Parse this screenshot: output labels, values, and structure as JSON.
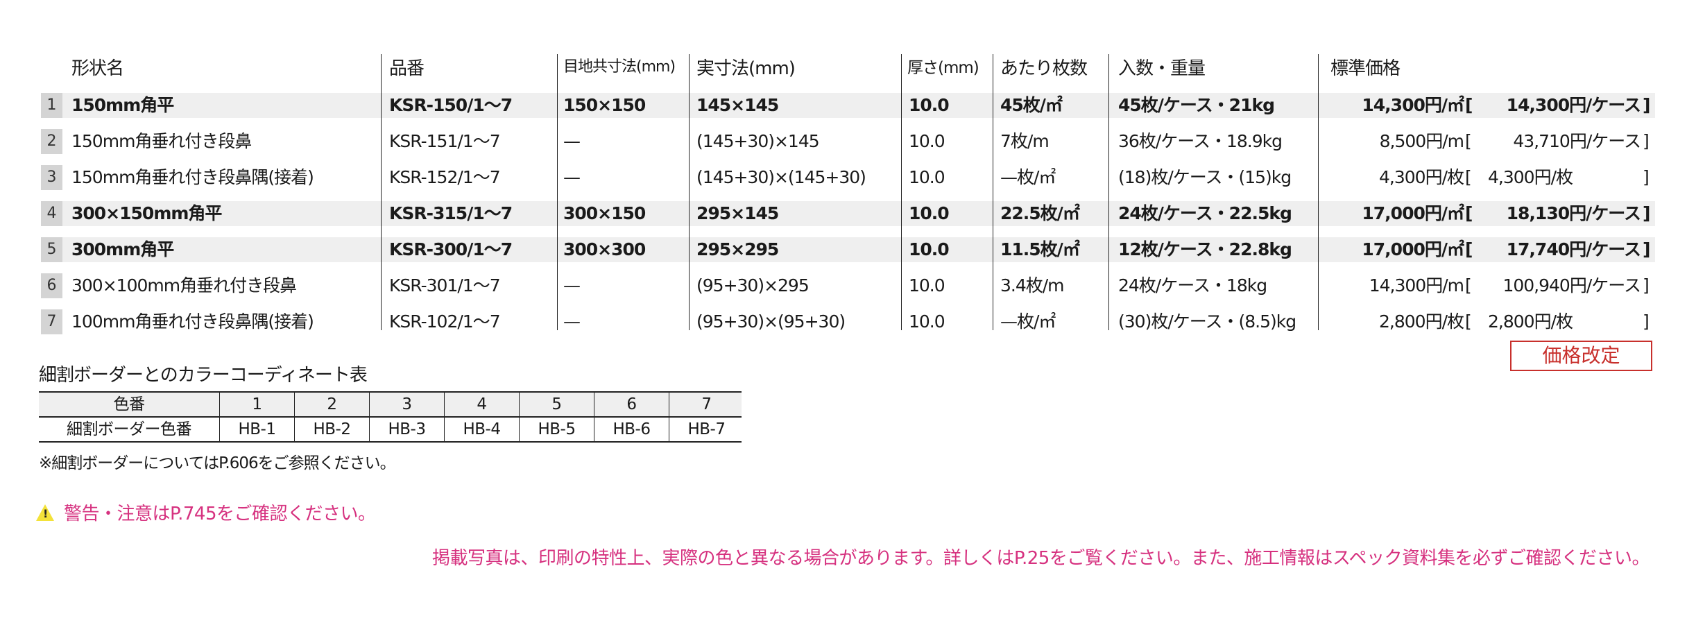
{
  "headers": [
    "形状名",
    "品番",
    "目地共寸法(mm)",
    "実寸法(mm)",
    "厚さ(mm)",
    "あたり枚数",
    "入数・重量",
    "標準価格"
  ],
  "rows": [
    {
      "no": "1",
      "name": "150mm角平",
      "code": "KSR-150/1〜7",
      "joint": "150×150",
      "actual": "145×145",
      "thick": "10.0",
      "per": "45枚/㎡",
      "pack": "45枚/ケース・21kg",
      "unit_price": "14,300円/㎡",
      "case_price": "14,300円/ケース",
      "bold": true
    },
    {
      "no": "2",
      "name": "150mm角垂れ付き段鼻",
      "code": "KSR-151/1〜7",
      "joint": "—",
      "actual": "(145+30)×145",
      "thick": "10.0",
      "per": "7枚/m",
      "pack": "36枚/ケース・18.9kg",
      "unit_price": "8,500円/m",
      "case_price": "43,710円/ケース",
      "bold": false
    },
    {
      "no": "3",
      "name": "150mm角垂れ付き段鼻隅(接着)",
      "code": "KSR-152/1〜7",
      "joint": "—",
      "actual": "(145+30)×(145+30)",
      "thick": "10.0",
      "per": "—枚/㎡",
      "pack": "(18)枚/ケース・(15)kg",
      "unit_price": "4,300円/枚",
      "case_price": "4,300円/枚",
      "bold": false
    },
    {
      "no": "4",
      "name": "300×150mm角平",
      "code": "KSR-315/1〜7",
      "joint": "300×150",
      "actual": "295×145",
      "thick": "10.0",
      "per": "22.5枚/㎡",
      "pack": "24枚/ケース・22.5kg",
      "unit_price": "17,000円/㎡",
      "case_price": "18,130円/ケース",
      "bold": true
    },
    {
      "no": "5",
      "name": "300mm角平",
      "code": "KSR-300/1〜7",
      "joint": "300×300",
      "actual": "295×295",
      "thick": "10.0",
      "per": "11.5枚/㎡",
      "pack": "12枚/ケース・22.8kg",
      "unit_price": "17,000円/㎡",
      "case_price": "17,740円/ケース",
      "bold": true
    },
    {
      "no": "6",
      "name": "300×100mm角垂れ付き段鼻",
      "code": "KSR-301/1〜7",
      "joint": "—",
      "actual": "(95+30)×295",
      "thick": "10.0",
      "per": "3.4枚/m",
      "pack": "24枚/ケース・18kg",
      "unit_price": "14,300円/m",
      "case_price": "100,940円/ケース",
      "bold": false
    },
    {
      "no": "7",
      "name": "100mm角垂れ付き段鼻隅(接着)",
      "code": "KSR-102/1〜7",
      "joint": "—",
      "actual": "(95+30)×(95+30)",
      "thick": "10.0",
      "per": "—枚/㎡",
      "pack": "(30)枚/ケース・(8.5)kg",
      "unit_price": "2,800円/枚",
      "case_price": "2,800円/枚",
      "bold": false
    }
  ],
  "bracket_open": "[",
  "bracket_close": "]",
  "badge": "価格改定",
  "color_table": {
    "title": "細割ボーダーとのカラーコーディネート表",
    "head": [
      "色番",
      "1",
      "2",
      "3",
      "4",
      "5",
      "6",
      "7"
    ],
    "body": [
      "細割ボーダー色番",
      "HB-1",
      "HB-2",
      "HB-3",
      "HB-4",
      "HB-5",
      "HB-6",
      "HB-7"
    ],
    "note": "※細割ボーダーについてはP.606をご参照ください。"
  },
  "warning": {
    "icon": "warning-triangle-icon",
    "text": "警告・注意はP.745をご確認ください。",
    "color": "#d6317f"
  },
  "footer_note": "掲載写真は、印刷の特性上、実際の色と異なる場合があります。詳しくはP.25をご覧ください。また、施工情報はスペック資料集を必ずご確認ください。"
}
